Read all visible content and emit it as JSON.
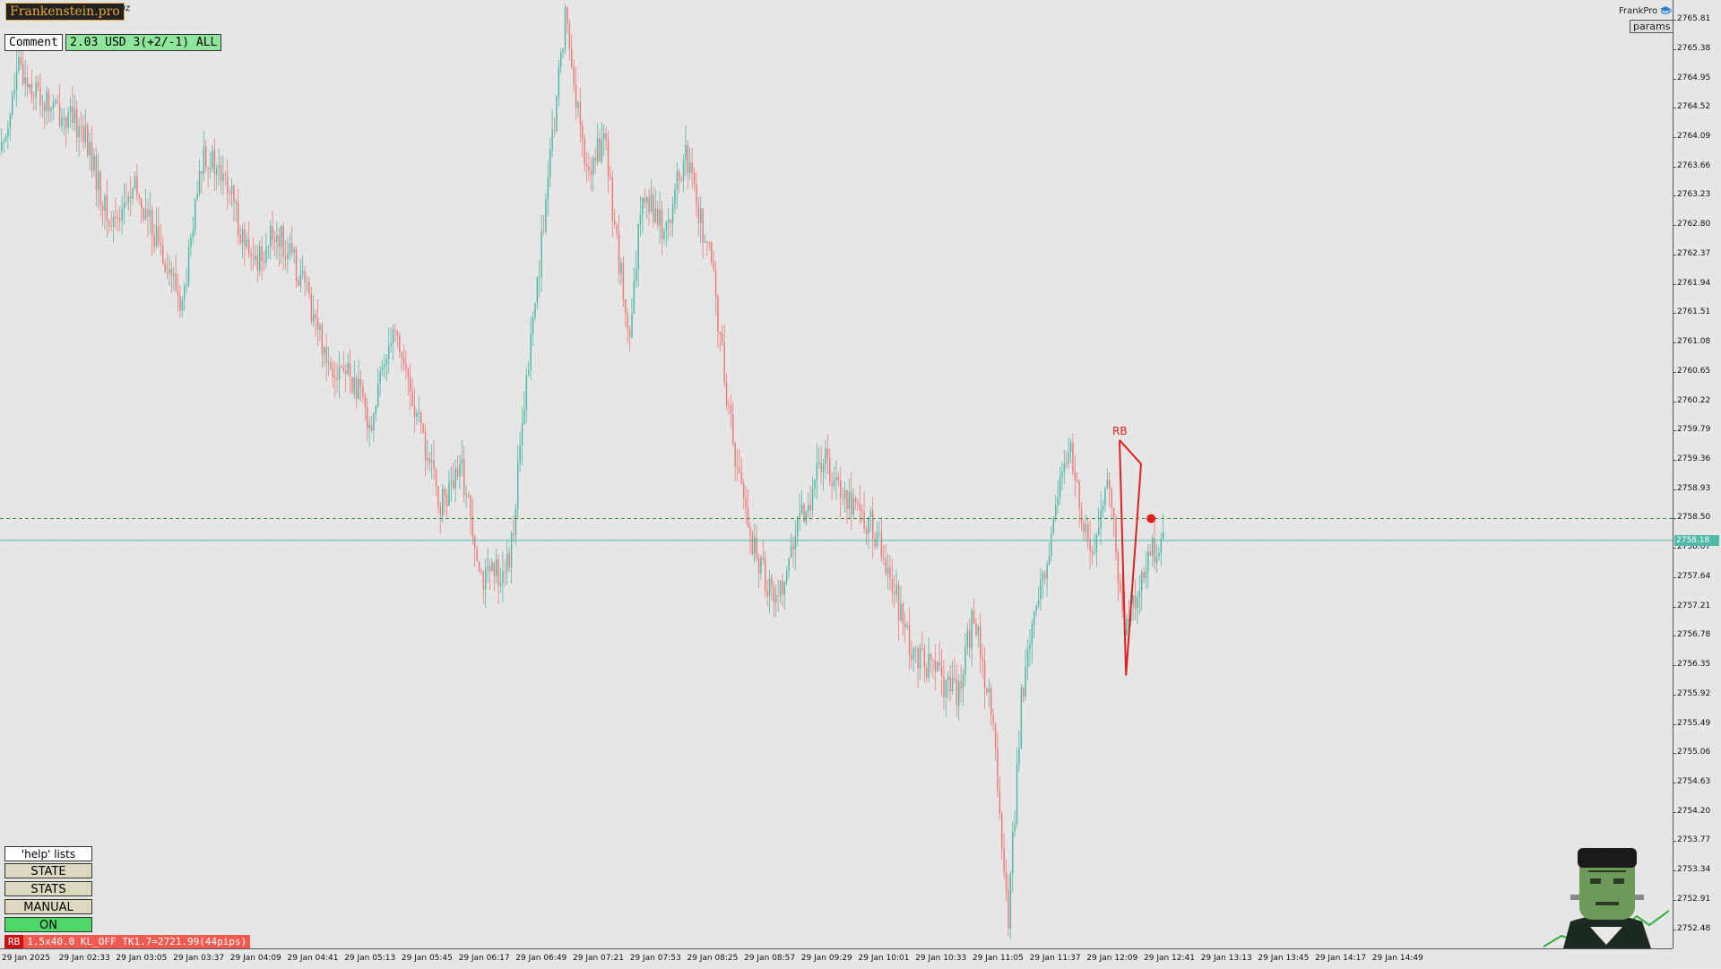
{
  "header": {
    "brand": "Frankenstein.pro",
    "symbol_suffix": "Oz",
    "comment_label": "Comment",
    "info_text": "2.03 USD 3(+2/-1) ALL",
    "frankpro_label": "FrankPro",
    "params_label": "params",
    "cap_icon": "graduation-cap-icon"
  },
  "commands": {
    "help_label": "'help' lists cmds",
    "state_label": "STATE",
    "stats_label": "STATS",
    "manual_label": "MANUAL",
    "on_label": "ON"
  },
  "status_bar": {
    "tag": "RB",
    "text": "1.5x40.0 KL_OFF TK1.7=2721.99(44pips)"
  },
  "price_tags": {
    "current": "2758.18"
  },
  "colors": {
    "bull": "#4fb8a8",
    "bear": "#ef7b78",
    "pattern": "#e02020",
    "current_line": "#4fb8a8",
    "level_line": "#3a8a3a"
  },
  "mascot_icon": "frankenstein-mascot-icon",
  "chart_data": {
    "type": "candlestick",
    "y_ticks": [
      "2765.81",
      "2765.38",
      "2764.95",
      "2764.52",
      "2764.09",
      "2763.66",
      "2763.23",
      "2762.80",
      "2762.37",
      "2761.94",
      "2761.51",
      "2761.08",
      "2760.65",
      "2760.22",
      "2759.79",
      "2759.36",
      "2758.93",
      "2758.50",
      "2758.07",
      "2757.64",
      "2757.21",
      "2756.78",
      "2756.35",
      "2755.92",
      "2755.49",
      "2755.06",
      "2754.63",
      "2754.20",
      "2753.77",
      "2753.34",
      "2752.91",
      "2752.48"
    ],
    "x_ticks": [
      "29 Jan 2025",
      "29 Jan 02:33",
      "29 Jan 03:05",
      "29 Jan 03:37",
      "29 Jan 04:09",
      "29 Jan 04:41",
      "29 Jan 05:13",
      "29 Jan 05:45",
      "29 Jan 06:17",
      "29 Jan 06:49",
      "29 Jan 07:21",
      "29 Jan 07:53",
      "29 Jan 08:25",
      "29 Jan 08:57",
      "29 Jan 09:29",
      "29 Jan 10:01",
      "29 Jan 10:33",
      "29 Jan 11:05",
      "29 Jan 11:37",
      "29 Jan 12:09",
      "29 Jan 12:41",
      "29 Jan 13:13",
      "29 Jan 13:45",
      "29 Jan 14:17",
      "29 Jan 14:49"
    ],
    "ylim": [
      2752.2,
      2766.1
    ],
    "dotted_level": 2758.5,
    "current_price": 2758.18,
    "anchors": [
      [
        0,
        2763.9
      ],
      [
        8,
        2765.1
      ],
      [
        20,
        2764.6
      ],
      [
        38,
        2764.2
      ],
      [
        50,
        2762.8
      ],
      [
        62,
        2763.3
      ],
      [
        74,
        2762.5
      ],
      [
        84,
        2761.6
      ],
      [
        94,
        2763.9
      ],
      [
        106,
        2763.3
      ],
      [
        116,
        2762.2
      ],
      [
        128,
        2762.7
      ],
      [
        140,
        2762.0
      ],
      [
        152,
        2760.8
      ],
      [
        162,
        2760.6
      ],
      [
        172,
        2759.9
      ],
      [
        182,
        2761.4
      ],
      [
        192,
        2760.1
      ],
      [
        204,
        2758.7
      ],
      [
        214,
        2759.2
      ],
      [
        224,
        2757.6
      ],
      [
        236,
        2757.8
      ],
      [
        246,
        2761.1
      ],
      [
        256,
        2764.0
      ],
      [
        262,
        2765.9
      ],
      [
        272,
        2763.5
      ],
      [
        280,
        2764.1
      ],
      [
        292,
        2761.0
      ],
      [
        298,
        2763.4
      ],
      [
        308,
        2762.7
      ],
      [
        318,
        2763.8
      ],
      [
        330,
        2762.2
      ],
      [
        340,
        2759.6
      ],
      [
        350,
        2758.0
      ],
      [
        360,
        2757.3
      ],
      [
        370,
        2758.3
      ],
      [
        382,
        2759.4
      ],
      [
        394,
        2758.8
      ],
      [
        404,
        2758.4
      ],
      [
        412,
        2757.8
      ],
      [
        422,
        2756.6
      ],
      [
        432,
        2756.3
      ],
      [
        444,
        2755.9
      ],
      [
        452,
        2757.1
      ],
      [
        460,
        2755.7
      ],
      [
        468,
        2752.6
      ],
      [
        474,
        2755.9
      ],
      [
        484,
        2757.6
      ],
      [
        496,
        2759.6
      ],
      [
        506,
        2757.9
      ],
      [
        514,
        2759.2
      ],
      [
        522,
        2756.9
      ],
      [
        532,
        2757.8
      ],
      [
        540,
        2758.3
      ]
    ],
    "pattern": {
      "label": "RB"
    }
  }
}
